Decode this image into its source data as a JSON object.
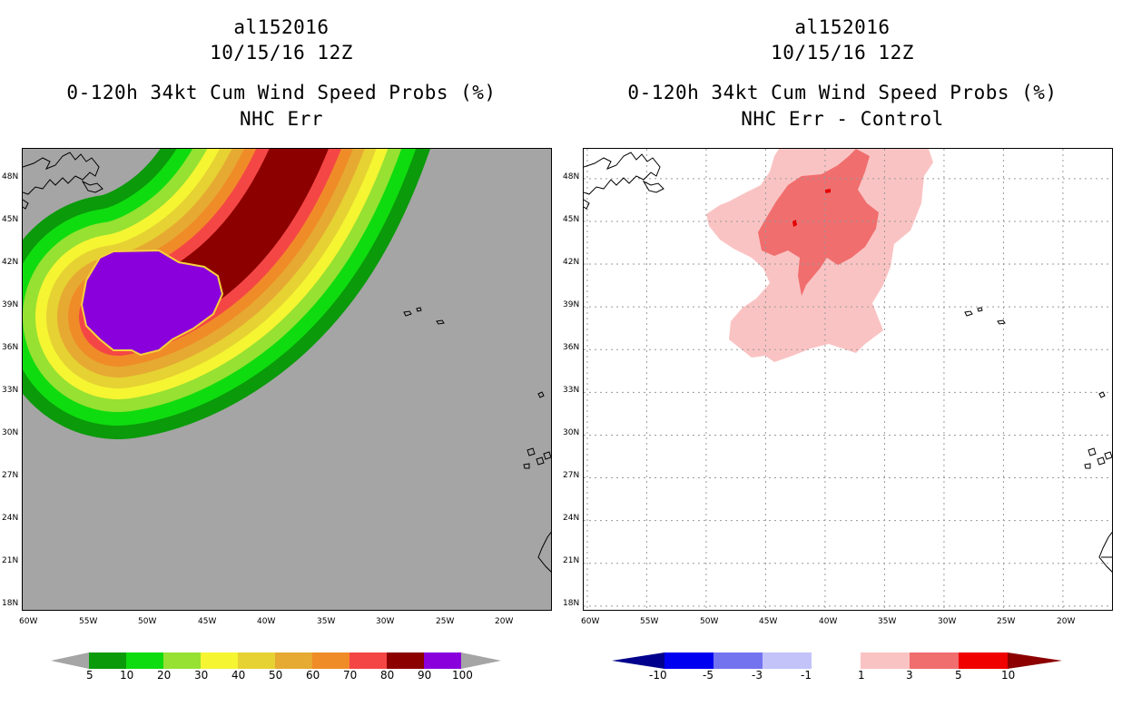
{
  "left_panel": {
    "title": [
      "al152016",
      "10/15/16 12Z",
      "0-120h 34kt Cum Wind Speed Probs (%)",
      "NHC Err"
    ],
    "colors": {
      "background": "#a5a5a5",
      "purple": "#8a00dc",
      "levels": [
        "#0a9a0a",
        "#0fdc0f",
        "#96e132",
        "#f5f532",
        "#e6d232",
        "#e6aa32",
        "#f08c28",
        "#f54646",
        "#8c0000"
      ]
    },
    "colorbar": {
      "colors": [
        "#0a9a0a",
        "#0fdc0f",
        "#96e132",
        "#f5f532",
        "#e6d232",
        "#e6aa32",
        "#f08c28",
        "#f54646",
        "#8c0000",
        "#8a00dc"
      ],
      "labels": [
        "5",
        "10",
        "20",
        "30",
        "40",
        "50",
        "60",
        "70",
        "80",
        "90",
        "100"
      ]
    }
  },
  "right_panel": {
    "title": [
      "al152016",
      "10/15/16 12Z",
      "0-120h 34kt Cum Wind Speed Probs (%)",
      "NHC Err - Control"
    ],
    "colors": {
      "light_red": "#fac3c3",
      "mid_red": "#f06e6e",
      "red": "#e60000"
    },
    "colorbar": {
      "colors": [
        "#00008c",
        "#0000f0",
        "#7373f0",
        "#c3c3fa",
        "#ffffff",
        "#fac3c3",
        "#f06e6e",
        "#f00000",
        "#8c0000"
      ],
      "labels": [
        "-10",
        "-5",
        "-3",
        "-1",
        "1",
        "3",
        "5",
        "10"
      ]
    }
  },
  "axes": {
    "lat_labels": [
      "48N",
      "45N",
      "42N",
      "39N",
      "36N",
      "33N",
      "30N",
      "27N",
      "24N",
      "21N",
      "18N"
    ],
    "lon_labels": [
      "60W",
      "55W",
      "50W",
      "45W",
      "40W",
      "35W",
      "30W",
      "25W",
      "20W"
    ],
    "lat_values": [
      48,
      45,
      42,
      39,
      36,
      33,
      30,
      27,
      24,
      21,
      18
    ],
    "lon_values": [
      -60,
      -55,
      -50,
      -45,
      -40,
      -35,
      -30,
      -25,
      -20
    ]
  }
}
